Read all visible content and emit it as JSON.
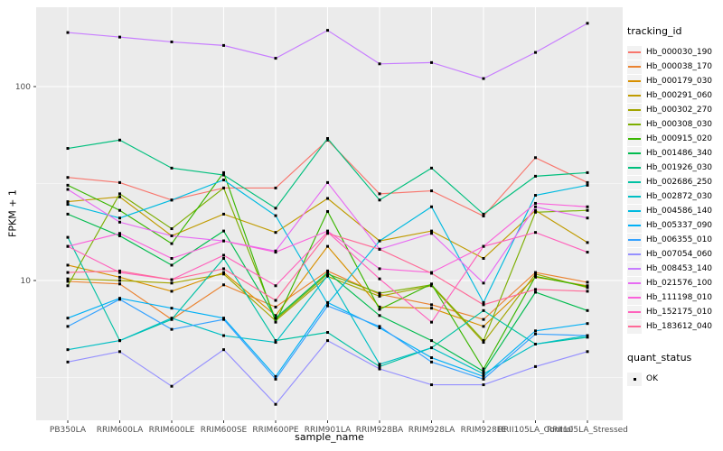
{
  "chart_data": {
    "type": "line",
    "title": "",
    "xlabel": "sample_name",
    "ylabel": "FPKM + 1",
    "y_scale": "log10",
    "y_ticks": [
      100,
      10
    ],
    "y_minor_gridlines": [
      31.62,
      3.162
    ],
    "ylim": [
      1.9,
      257
    ],
    "grid": "on",
    "panel_bg": "#EBEBEB",
    "grid_color": "#FFFFFF",
    "tick_text_color": "#4D4D4D",
    "point_shape": "black-square",
    "legend_position": "right",
    "legend": {
      "tracking_title": "tracking_id",
      "quant_title": "quant_status",
      "quant_value": "OK"
    },
    "categories": [
      "PB350LA",
      "RRIM600LA",
      "RRIM600LE",
      "RRIM600SE",
      "RRIM600PE",
      "RRIM901LA",
      "RRIM928BA",
      "RRIM928LA",
      "RRIM928LE",
      "RRII105LA_Control",
      "RRII105LA_Stressed"
    ],
    "series": [
      {
        "name": "Hb_000030_190",
        "color": "#F8766D",
        "values": [
          34,
          32,
          26,
          30,
          30,
          53,
          28,
          29,
          21.5,
          43,
          32
        ]
      },
      {
        "name": "Hb_000038_170",
        "color": "#EA8331",
        "values": [
          9.9,
          9.6,
          6.3,
          9.5,
          7.3,
          11.2,
          8.5,
          7.5,
          6.3,
          11,
          9.8
        ]
      },
      {
        "name": "Hb_000179_030",
        "color": "#D89000",
        "values": [
          12,
          10.4,
          8.8,
          11,
          6.6,
          15,
          7.3,
          7.2,
          5.8,
          10.4,
          9.4
        ]
      },
      {
        "name": "Hb_000291_060",
        "color": "#C09B00",
        "values": [
          25.5,
          27,
          17,
          22,
          17.7,
          26.5,
          16,
          18,
          13,
          23,
          15.7
        ]
      },
      {
        "name": "Hb_000302_270",
        "color": "#A3A500",
        "values": [
          10.2,
          10,
          9.7,
          10.8,
          6.2,
          10.5,
          8.3,
          9.4,
          4.8,
          10.8,
          9.2
        ]
      },
      {
        "name": "Hb_000308_030",
        "color": "#7CAE00",
        "values": [
          9.4,
          28,
          18.5,
          30,
          6.3,
          10.8,
          8.6,
          9.5,
          4.9,
          22.5,
          23
        ]
      },
      {
        "name": "Hb_000915_020",
        "color": "#39B600",
        "values": [
          31,
          23,
          15.5,
          36,
          6.1,
          22.7,
          7.1,
          9.6,
          3.5,
          10.5,
          9.3
        ]
      },
      {
        "name": "Hb_001486_340",
        "color": "#00BB4E",
        "values": [
          22,
          17,
          12,
          18,
          6.4,
          11,
          6.6,
          4.9,
          3.4,
          8.7,
          7.0
        ]
      },
      {
        "name": "Hb_001926_030",
        "color": "#00BF7D",
        "values": [
          48,
          53,
          38,
          35,
          23.6,
          54,
          26,
          38,
          22,
          34.5,
          36
        ]
      },
      {
        "name": "Hb_002686_250",
        "color": "#00C1A3",
        "values": [
          16.7,
          4.9,
          6.3,
          13,
          4.9,
          5.4,
          3.6,
          4.5,
          7.0,
          4.7,
          5.1
        ]
      },
      {
        "name": "Hb_002872_030",
        "color": "#00BFC4",
        "values": [
          4.4,
          4.9,
          6.4,
          5.2,
          4.8,
          10.6,
          3.7,
          4.5,
          3.3,
          4.7,
          5.2
        ]
      },
      {
        "name": "Hb_004586_140",
        "color": "#00BAE0",
        "values": [
          24.7,
          21,
          26,
          33,
          21.6,
          7.6,
          16,
          24,
          7.7,
          27.5,
          31
        ]
      },
      {
        "name": "Hb_005337_090",
        "color": "#00B0F6",
        "values": [
          6.4,
          8.1,
          7.2,
          6.4,
          3.2,
          7.7,
          5.7,
          4.0,
          3.2,
          5.5,
          6.0
        ]
      },
      {
        "name": "Hb_006355_010",
        "color": "#35A2FF",
        "values": [
          5.8,
          8.0,
          5.6,
          6.3,
          3.1,
          7.4,
          5.8,
          3.8,
          3.1,
          5.3,
          5.2
        ]
      },
      {
        "name": "Hb_007054_060",
        "color": "#9590FF",
        "values": [
          3.8,
          4.3,
          2.85,
          4.4,
          2.3,
          4.9,
          3.5,
          2.9,
          2.9,
          3.6,
          4.3
        ]
      },
      {
        "name": "Hb_008453_140",
        "color": "#C77CFF",
        "values": [
          190,
          180,
          170,
          163,
          140,
          195,
          131,
          133,
          110,
          150,
          212
        ]
      },
      {
        "name": "Hb_021576_100",
        "color": "#E76BF3",
        "values": [
          29.5,
          20,
          17,
          16,
          14.2,
          32,
          14.5,
          17.5,
          9.7,
          24,
          21
        ]
      },
      {
        "name": "Hb_111198_010",
        "color": "#FA62DB",
        "values": [
          15,
          17.5,
          13,
          16,
          14,
          18,
          11.5,
          11,
          15,
          25,
          24
        ]
      },
      {
        "name": "Hb_152175_010",
        "color": "#FF62BC",
        "values": [
          15,
          11,
          10.1,
          13.5,
          9.4,
          17.8,
          10.2,
          6.1,
          15,
          17.7,
          14
        ]
      },
      {
        "name": "Hb_183612_040",
        "color": "#FF6A98",
        "values": [
          11,
          11.2,
          10.1,
          11.5,
          7.9,
          17.5,
          14.5,
          10.9,
          7.5,
          9.0,
          8.8
        ]
      }
    ]
  }
}
